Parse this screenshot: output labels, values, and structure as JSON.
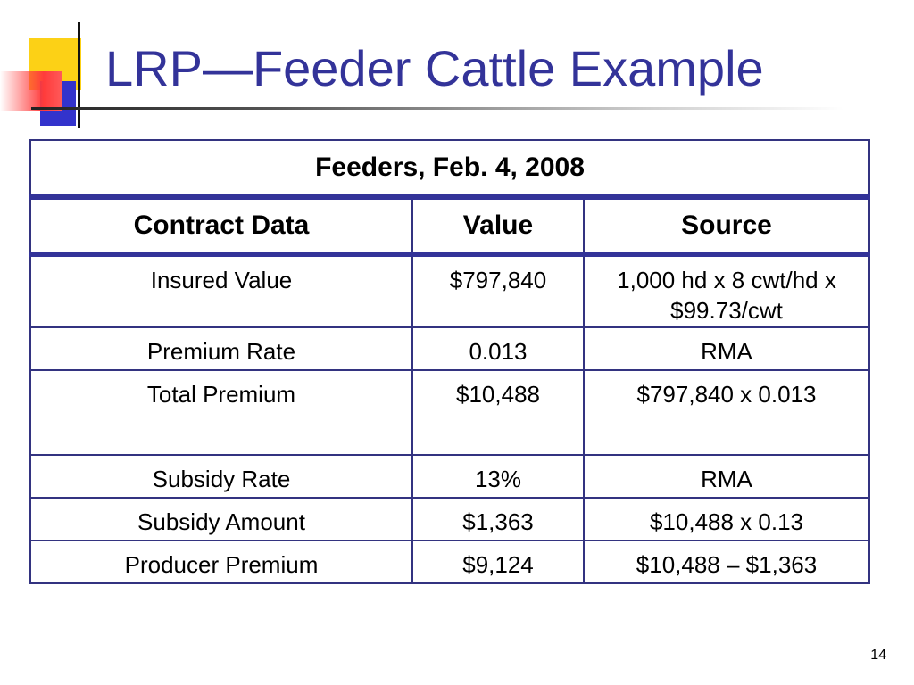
{
  "slide": {
    "title": "LRP—Feeder Cattle Example",
    "page_number": "14"
  },
  "table": {
    "caption": "Feeders, Feb. 4, 2008",
    "headers": [
      "Contract Data",
      "Value",
      "Source"
    ],
    "rows": [
      [
        "Insured Value",
        "$797,840",
        "1,000 hd x 8 cwt/hd x $99.73/cwt"
      ],
      [
        "Premium Rate",
        "0.013",
        "RMA"
      ],
      [
        "Total Premium",
        "$10,488",
        "$797,840 x 0.013"
      ],
      [
        "Subsidy Rate",
        "13%",
        "RMA"
      ],
      [
        "Subsidy Amount",
        "$1,363",
        "$10,488 x 0.13"
      ],
      [
        "Producer Premium",
        "$9,124",
        "$10,488 – $1,363"
      ]
    ]
  },
  "colors": {
    "title": "#333399",
    "border": "#333380",
    "deco_yellow": "#fcd116",
    "deco_blue": "#3333cc",
    "deco_red": "#ff3b3b"
  }
}
